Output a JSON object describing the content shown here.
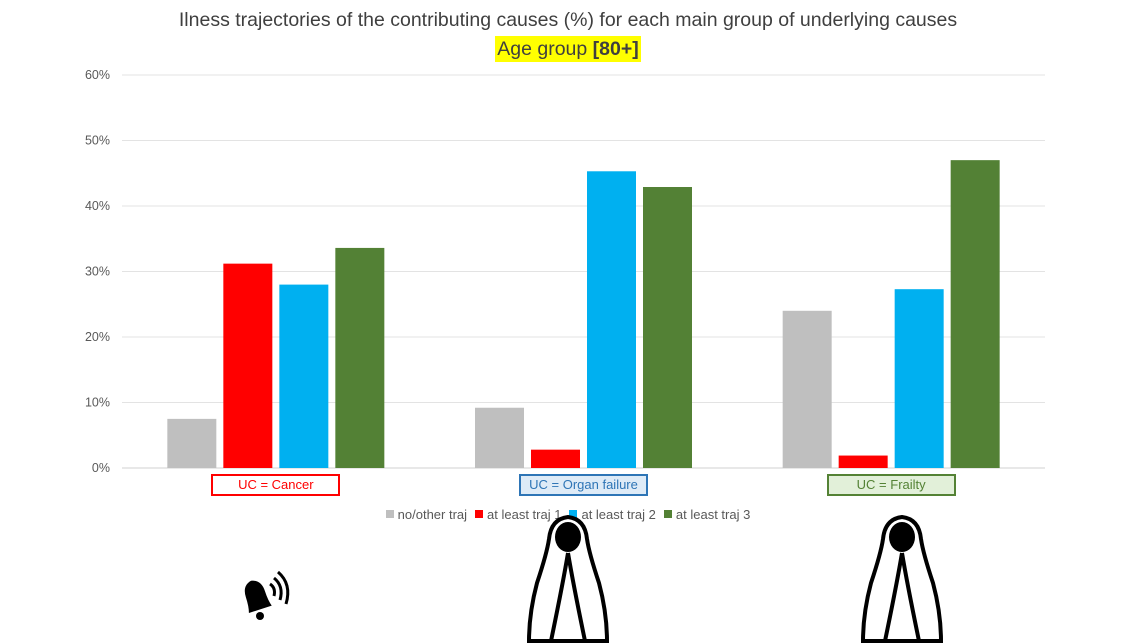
{
  "title": "Ilness trajectories of the contributing causes (%) for each main group of underlying causes",
  "subtitle": {
    "prefix": "Age group ",
    "bold": "[80+]"
  },
  "chart_data": {
    "type": "bar",
    "categories": [
      "UC = Cancer",
      "UC = Organ failure",
      "UC = Frailty"
    ],
    "series": [
      {
        "name": "no/other traj",
        "color": "#bfbfbf",
        "values": [
          7.5,
          9.2,
          24.0
        ]
      },
      {
        "name": "at least traj 1",
        "color": "#ff0000",
        "values": [
          31.2,
          2.8,
          1.9
        ]
      },
      {
        "name": "at least traj 2",
        "color": "#00b0f0",
        "values": [
          28.0,
          45.3,
          27.3
        ]
      },
      {
        "name": "at least traj 3",
        "color": "#538135",
        "values": [
          33.6,
          42.9,
          47.0
        ]
      }
    ],
    "yticks": [
      "0%",
      "10%",
      "20%",
      "30%",
      "40%",
      "50%",
      "60%"
    ],
    "ylim": [
      0,
      60
    ],
    "grid": true,
    "legend_position": "bottom",
    "category_box_colors": [
      {
        "border": "#ff0000",
        "background": "#ffffff",
        "text": "#ff0000"
      },
      {
        "border": "#2e75b6",
        "background": "#deebf7",
        "text": "#2e75b6"
      },
      {
        "border": "#548235",
        "background": "#e2f0d9",
        "text": "#548235"
      }
    ]
  },
  "icons": [
    "bell-icon",
    "hooded-figure-icon",
    "hooded-figure-icon"
  ]
}
